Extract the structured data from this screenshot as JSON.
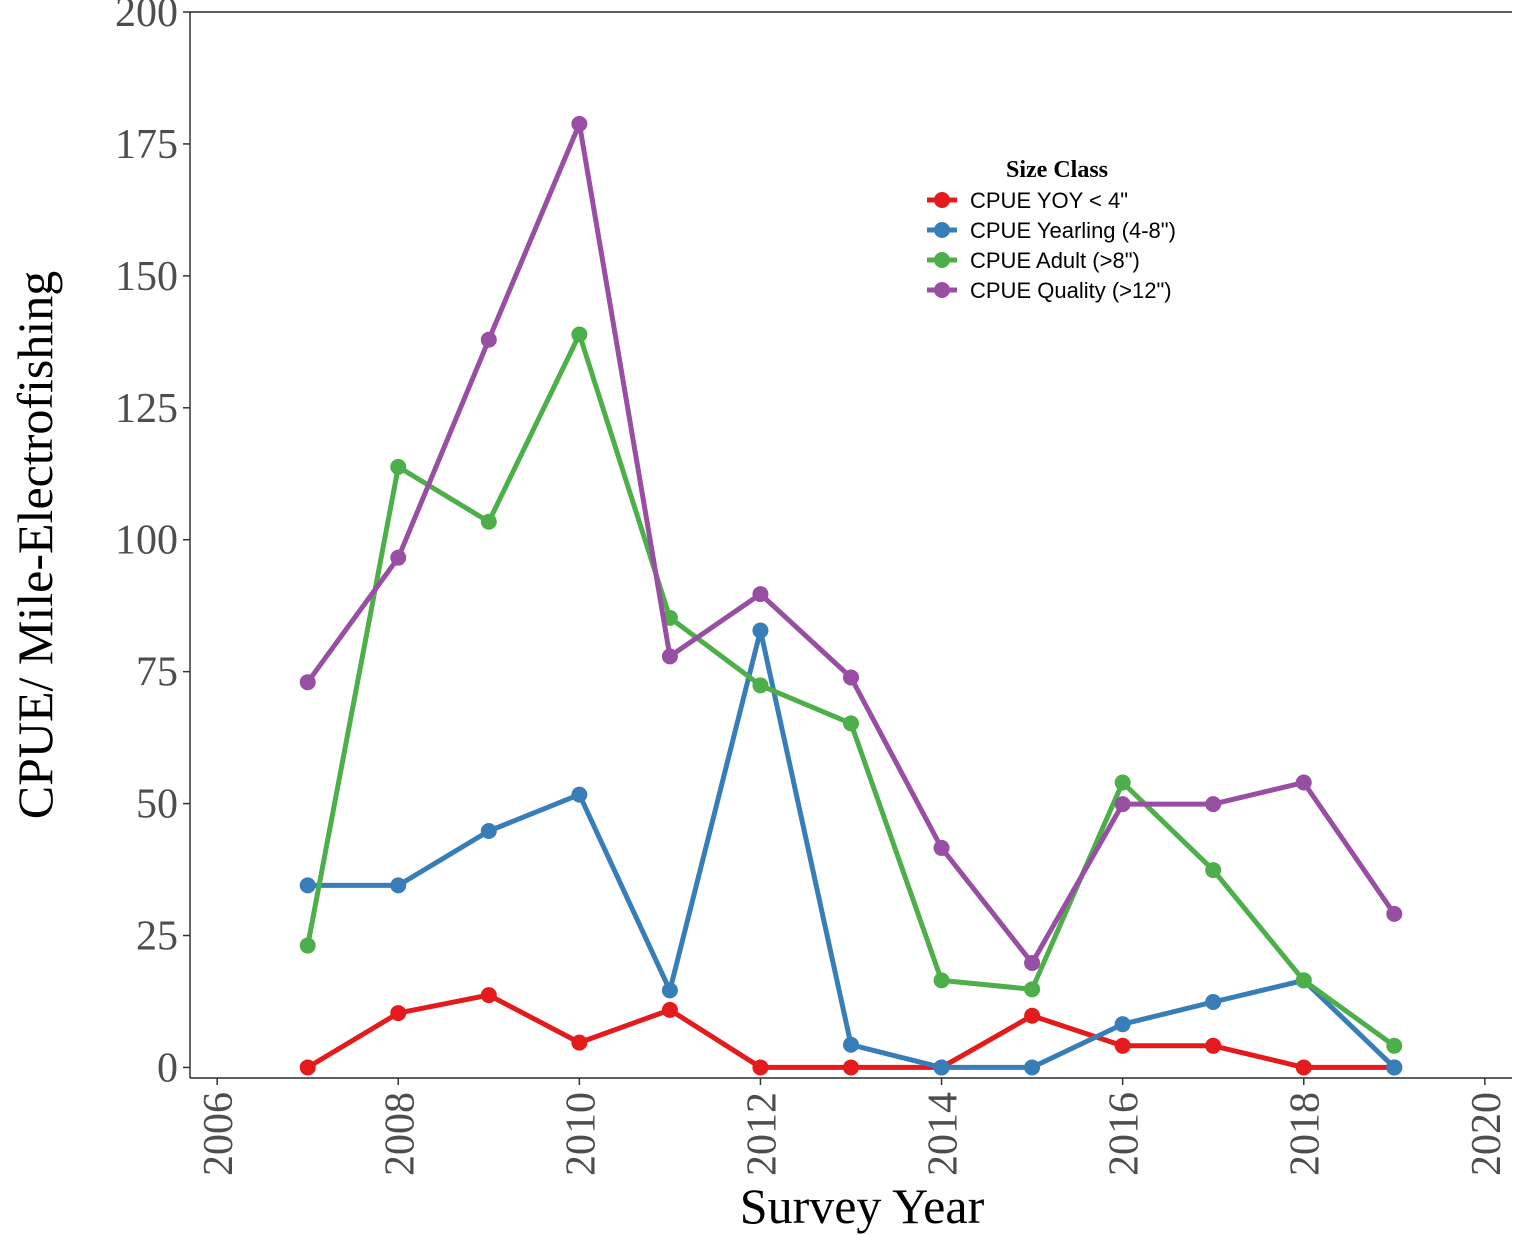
{
  "chart_data": {
    "type": "line",
    "title": "",
    "xlabel": "Survey Year",
    "ylabel": "CPUE/ Mile-Electrofishing",
    "xlim": [
      2005.7,
      2020.3
    ],
    "ylim": [
      -2,
      200
    ],
    "x_ticks": [
      2006,
      2008,
      2010,
      2012,
      2014,
      2016,
      2018,
      2020
    ],
    "y_ticks": [
      0,
      25,
      50,
      75,
      100,
      125,
      150,
      175,
      200
    ],
    "x_tick_labels": [
      "2006",
      "2008",
      "2010",
      "2012",
      "2014",
      "2016",
      "2018",
      "2020"
    ],
    "y_tick_labels": [
      "0",
      "25",
      "50",
      "75",
      "100",
      "125",
      "150",
      "175",
      "200"
    ],
    "grid": false,
    "legend": {
      "title": "Size Class",
      "placement": "top-right-inside"
    },
    "x": [
      2007,
      2008,
      2009,
      2010,
      2011,
      2012,
      2013,
      2014,
      2015,
      2016,
      2017,
      2018,
      2019
    ],
    "series": [
      {
        "name": "CPUE YOY < 4\"",
        "color": "#e41a1c",
        "values": [
          0,
          10.3,
          13.7,
          4.7,
          10.9,
          0,
          0,
          0,
          9.8,
          4.1,
          4.1,
          0,
          0
        ]
      },
      {
        "name": "CPUE Yearling (4-8\")",
        "color": "#377eb8",
        "values": [
          34.5,
          34.5,
          44.8,
          51.7,
          14.6,
          82.8,
          4.3,
          0,
          0,
          8.2,
          12.4,
          16.5,
          0
        ]
      },
      {
        "name": "CPUE Adult (>8\")",
        "color": "#4daf4a",
        "values": [
          23.1,
          113.8,
          103.4,
          138.9,
          85.2,
          72.4,
          65.2,
          16.5,
          14.8,
          54.0,
          37.4,
          16.5,
          4.1
        ]
      },
      {
        "name": "CPUE Quality (>12\")",
        "color": "#984ea3",
        "values": [
          73.0,
          96.6,
          137.9,
          178.8,
          77.9,
          89.7,
          73.9,
          41.6,
          19.8,
          49.9,
          49.9,
          54.0,
          29.1
        ]
      }
    ]
  }
}
